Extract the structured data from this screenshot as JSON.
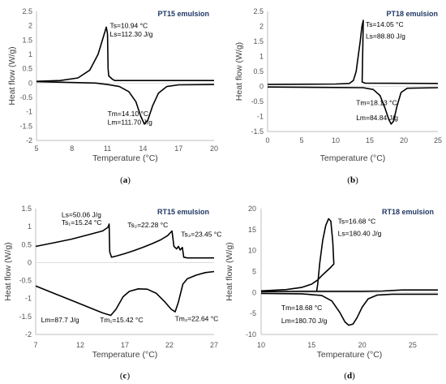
{
  "chart_data": [
    {
      "type": "line",
      "title": "PT15 emulsion",
      "xlabel": "Temperature (°C)",
      "ylabel": "Heat flow (W/g)",
      "xlim": [
        5,
        20
      ],
      "ylim": [
        -2,
        2.5
      ],
      "x_ticks": [
        "5",
        "8",
        "11",
        "14",
        "17",
        "20"
      ],
      "y_ticks": [
        "2.5",
        "2",
        "1.5",
        "1",
        "0.5",
        "0",
        "-0.5",
        "-1",
        "-1.5",
        "-2"
      ],
      "caption": "(a)",
      "annotations": [
        {
          "text": "Ts=10.94 °C",
          "x": 11.2,
          "y": 1.92
        },
        {
          "text": "Ls=112.30 J/g",
          "x": 11.2,
          "y": 1.62
        },
        {
          "text": "Tm=14.10 °C",
          "x": 11.0,
          "y": -1.15
        },
        {
          "text": "Lm=111.70 J/g",
          "x": 11.0,
          "y": -1.45
        }
      ],
      "series": [
        {
          "values": [
            [
              5,
              0.06
            ],
            [
              7,
              0.09
            ],
            [
              8.5,
              0.18
            ],
            [
              9.5,
              0.45
            ],
            [
              10.2,
              1.0
            ],
            [
              10.6,
              1.55
            ],
            [
              10.9,
              1.95
            ],
            [
              11.0,
              1.7
            ],
            [
              11.05,
              0.5
            ],
            [
              11.1,
              0.25
            ],
            [
              11.4,
              0.14
            ],
            [
              11.6,
              0.09
            ],
            [
              20,
              0.09
            ]
          ]
        },
        {
          "values": [
            [
              5,
              0.05
            ],
            [
              10,
              0.0
            ],
            [
              11,
              -0.05
            ],
            [
              12,
              -0.12
            ],
            [
              12.8,
              -0.3
            ],
            [
              13.4,
              -0.65
            ],
            [
              13.8,
              -1.15
            ],
            [
              14.1,
              -1.42
            ],
            [
              14.4,
              -1.3
            ],
            [
              14.8,
              -0.8
            ],
            [
              15.3,
              -0.35
            ],
            [
              16,
              -0.12
            ],
            [
              17,
              -0.06
            ],
            [
              20,
              -0.05
            ]
          ]
        }
      ]
    },
    {
      "type": "line",
      "title": "PT18 emulsion",
      "xlabel": "Temperature (°C)",
      "ylabel": "Heat flow (W/g)",
      "xlim": [
        0,
        25
      ],
      "ylim": [
        -1.5,
        2.5
      ],
      "x_ticks": [
        "0",
        "5",
        "10",
        "15",
        "20",
        "25"
      ],
      "y_ticks": [
        "2.5",
        "2",
        "1.5",
        "1",
        "0.5",
        "0",
        "-0.5",
        "-1",
        "-1.5"
      ],
      "caption": "(b)",
      "annotations": [
        {
          "text": "Ts=14.05 °C",
          "x": 14.4,
          "y": 1.98
        },
        {
          "text": "Ls=88.80 J/g",
          "x": 14.4,
          "y": 1.6
        },
        {
          "text": "Tm=18.13 °C",
          "x": 13.0,
          "y": -0.62
        },
        {
          "text": "Lm=84.84 J/g",
          "x": 13.0,
          "y": -1.12
        }
      ],
      "series": [
        {
          "values": [
            [
              0,
              0.07
            ],
            [
              10,
              0.08
            ],
            [
              12,
              0.1
            ],
            [
              12.6,
              0.2
            ],
            [
              13.0,
              0.5
            ],
            [
              13.3,
              1.0
            ],
            [
              13.6,
              1.5
            ],
            [
              13.85,
              2.0
            ],
            [
              14.05,
              2.2
            ],
            [
              13.88,
              0.15
            ],
            [
              14.3,
              0.11
            ],
            [
              25,
              0.1
            ]
          ]
        },
        {
          "values": [
            [
              0,
              -0.02
            ],
            [
              14,
              -0.04
            ],
            [
              15.5,
              -0.1
            ],
            [
              16.5,
              -0.3
            ],
            [
              17.2,
              -0.7
            ],
            [
              17.8,
              -1.1
            ],
            [
              18.13,
              -1.25
            ],
            [
              18.5,
              -1.15
            ],
            [
              19.0,
              -0.65
            ],
            [
              19.6,
              -0.2
            ],
            [
              20.5,
              -0.06
            ],
            [
              25,
              -0.04
            ]
          ]
        }
      ]
    },
    {
      "type": "line",
      "title": "RT15  emulsion",
      "xlabel": "Temperature (°C)",
      "ylabel": "Heat flow (W/g)",
      "xlim": [
        7,
        27
      ],
      "ylim": [
        -2,
        1.5
      ],
      "x_ticks": [
        "7",
        "12",
        "17",
        "22",
        "27"
      ],
      "y_ticks": [
        "1.5",
        "1",
        "0.5",
        "0",
        "-0.5",
        "-1",
        "-1.5",
        "-2"
      ],
      "caption": "(c)",
      "annotations": [
        {
          "text": "Ls=50.06 J/g",
          "x": 9.9,
          "y": 1.26
        },
        {
          "text": "Ts₁=15.24 °C",
          "x": 9.9,
          "y": 1.05
        },
        {
          "text": "Ts₂=22.28 °C",
          "x": 17.3,
          "y": 0.98
        },
        {
          "text": "Ts₃=23.45 °C",
          "x": 23.3,
          "y": 0.72
        },
        {
          "text": "Lm=87.7 J/g",
          "x": 7.6,
          "y": -1.66
        },
        {
          "text": "Tm₁=15.42 °C",
          "x": 14.2,
          "y": -1.66
        },
        {
          "text": "Tm₂=22.64 °C",
          "x": 22.6,
          "y": -1.63
        }
      ],
      "series": [
        {
          "values": [
            [
              7,
              0.45
            ],
            [
              9,
              0.55
            ],
            [
              11,
              0.65
            ],
            [
              13,
              0.78
            ],
            [
              14.5,
              0.88
            ],
            [
              15.1,
              0.98
            ],
            [
              15.24,
              1.07
            ],
            [
              15.3,
              0.3
            ],
            [
              15.5,
              0.15
            ],
            [
              16,
              0.18
            ],
            [
              17,
              0.25
            ],
            [
              18,
              0.33
            ],
            [
              19,
              0.42
            ],
            [
              20,
              0.52
            ],
            [
              21,
              0.63
            ],
            [
              21.8,
              0.75
            ],
            [
              22.28,
              0.88
            ],
            [
              22.5,
              0.45
            ],
            [
              22.8,
              0.38
            ],
            [
              23.0,
              0.45
            ],
            [
              23.2,
              0.35
            ],
            [
              23.45,
              0.42
            ],
            [
              23.6,
              0.15
            ],
            [
              24,
              0.13
            ],
            [
              27,
              0.13
            ]
          ]
        },
        {
          "values": [
            [
              7,
              -0.65
            ],
            [
              9,
              -0.85
            ],
            [
              11,
              -1.05
            ],
            [
              13,
              -1.25
            ],
            [
              14.5,
              -1.4
            ],
            [
              15.42,
              -1.47
            ],
            [
              16,
              -1.3
            ],
            [
              16.8,
              -0.95
            ],
            [
              17.5,
              -0.8
            ],
            [
              18.5,
              -0.73
            ],
            [
              19.5,
              -0.74
            ],
            [
              20.5,
              -0.85
            ],
            [
              21.5,
              -1.1
            ],
            [
              22.2,
              -1.3
            ],
            [
              22.64,
              -1.37
            ],
            [
              23,
              -1.1
            ],
            [
              23.5,
              -0.6
            ],
            [
              24,
              -0.45
            ],
            [
              25,
              -0.35
            ],
            [
              26,
              -0.28
            ],
            [
              27,
              -0.25
            ]
          ]
        }
      ]
    },
    {
      "type": "line",
      "title": "RT18 emulsion",
      "xlabel": "Temperature (°C)",
      "ylabel": "Heat flow (W/g)",
      "xlim": [
        10,
        27.5
      ],
      "ylim": [
        -10,
        20
      ],
      "x_ticks": [
        "10",
        "15",
        "20",
        "25"
      ],
      "y_ticks": [
        "20",
        "15",
        "10",
        "5",
        "0",
        "-5",
        "-10"
      ],
      "caption": "(d)",
      "annotations": [
        {
          "text": "Ts=16.68 °C",
          "x": 17.6,
          "y": 16.4
        },
        {
          "text": "Ls=180.40 J/g",
          "x": 17.6,
          "y": 13.5
        },
        {
          "text": "Tm=18.68 °C",
          "x": 12.0,
          "y": -4.2
        },
        {
          "text": "Lm=180.70 J/g",
          "x": 12.0,
          "y": -7.3
        }
      ],
      "series": [
        {
          "values": [
            [
              10,
              0.2
            ],
            [
              14,
              0.3
            ],
            [
              15.5,
              0.3
            ],
            [
              15.6,
              2.0
            ],
            [
              15.8,
              7.0
            ],
            [
              16.1,
              12.5
            ],
            [
              16.4,
              16.0
            ],
            [
              16.68,
              17.6
            ],
            [
              16.9,
              17.0
            ],
            [
              17.1,
              12.0
            ],
            [
              17.2,
              6.8
            ],
            [
              16.8,
              5.8
            ],
            [
              16.4,
              4.9
            ],
            [
              16.0,
              4.0
            ],
            [
              15.6,
              3.0
            ],
            [
              15.0,
              2.0
            ],
            [
              14.0,
              1.2
            ],
            [
              12.5,
              0.7
            ],
            [
              10,
              0.4
            ]
          ]
        },
        {
          "values": [
            [
              15.5,
              0.3
            ],
            [
              17.2,
              0.3
            ],
            [
              20,
              0.3
            ],
            [
              22,
              0.35
            ],
            [
              23,
              0.5
            ],
            [
              24,
              0.6
            ],
            [
              27.5,
              0.6
            ]
          ]
        },
        {
          "values": [
            [
              10,
              -0.2
            ],
            [
              14,
              -0.3
            ],
            [
              16,
              -0.7
            ],
            [
              17,
              -2.0
            ],
            [
              17.8,
              -4.8
            ],
            [
              18.3,
              -7.0
            ],
            [
              18.68,
              -7.8
            ],
            [
              19.1,
              -7.5
            ],
            [
              19.5,
              -6.0
            ],
            [
              20,
              -3.5
            ],
            [
              20.6,
              -1.5
            ],
            [
              21.5,
              -0.6
            ],
            [
              23,
              -0.4
            ],
            [
              27.5,
              -0.4
            ]
          ]
        }
      ]
    }
  ]
}
